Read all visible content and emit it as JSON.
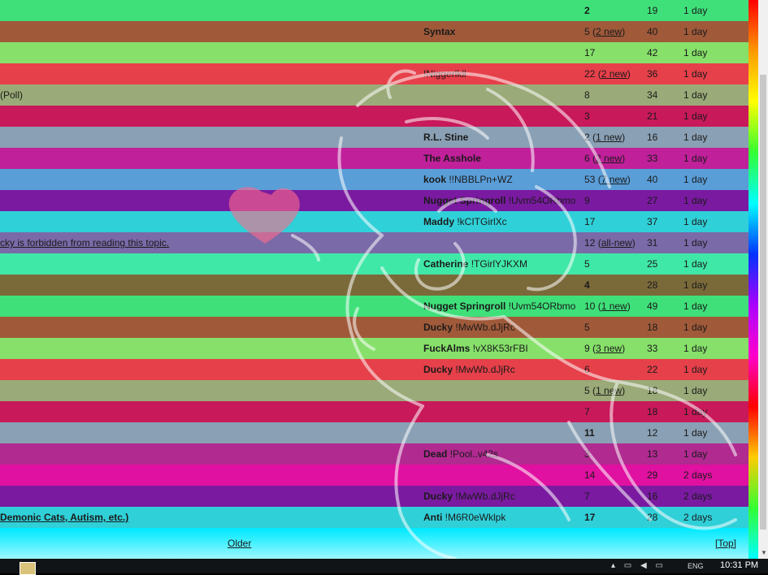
{
  "rows": [
    {
      "topic": "",
      "author": "",
      "replies": "2",
      "new": "",
      "views": "19",
      "time": "1 day",
      "bg": "#3fe07a",
      "bold_replies": true
    },
    {
      "topic": "",
      "author": "Syntax",
      "author_bold": true,
      "replies": "5",
      "new": "2 new",
      "views": "40",
      "time": "1 day",
      "bg": "#a05a3a"
    },
    {
      "topic": "",
      "author": "",
      "replies": "17",
      "new": "",
      "views": "42",
      "time": "1 day",
      "bg": "#86e06a"
    },
    {
      "topic": "",
      "author": "!Niggerlkll",
      "replies": "22",
      "new": "2 new",
      "views": "36",
      "time": "1 day",
      "bg": "#e6404a"
    },
    {
      "topic": "(Poll)",
      "author": "",
      "replies": "8",
      "new": "",
      "views": "34",
      "time": "1 day",
      "bg": "#9aaa78"
    },
    {
      "topic": "",
      "author": "",
      "replies": "3",
      "new": "",
      "views": "21",
      "time": "1 day",
      "bg": "#c8195a"
    },
    {
      "topic": "",
      "author": "R.L. Stine",
      "author_bold": true,
      "replies": "2",
      "new": "1 new",
      "views": "16",
      "time": "1 day",
      "bg": "#8aa0b4"
    },
    {
      "topic": "",
      "author": "The Asshole",
      "author_bold": true,
      "replies": "6",
      "new": "2 new",
      "views": "33",
      "time": "1 day",
      "bg": "#c0209a"
    },
    {
      "topic": "",
      "author": "kook !!NBBLPn+WZ",
      "author_bold_part": "kook",
      "replies": "53",
      "new": "7 new",
      "views": "40",
      "time": "1 day",
      "bg": "#5a9ed8"
    },
    {
      "topic": "",
      "author": "Nugget Springroll !Uvm54ORbmo",
      "author_bold_part": "Nugget Springroll",
      "replies": "9",
      "new": "",
      "views": "27",
      "time": "1 day",
      "bg": "#7a1aa0"
    },
    {
      "topic": "",
      "author": "Maddy !kCITGirlXc",
      "author_bold_part": "Maddy",
      "replies": "17",
      "new": "",
      "views": "37",
      "time": "1 day",
      "bg": "#30d0d8"
    },
    {
      "topic": "cky is forbidden from reading this topic.",
      "topic_link": true,
      "author": "",
      "replies": "12",
      "new": "all-new",
      "views": "31",
      "time": "1 day",
      "bg": "#7a6aa8"
    },
    {
      "topic": "",
      "author": "Catherine !TGirlYJKXM",
      "author_bold_part": "Catherine",
      "replies": "5",
      "new": "",
      "views": "25",
      "time": "1 day",
      "bg": "#40e8a8"
    },
    {
      "topic": "",
      "author": "",
      "replies": "4",
      "new": "",
      "views": "28",
      "time": "1 day",
      "bg": "#7a6a3a",
      "bold_replies": true
    },
    {
      "topic": "",
      "author": "Nugget Springroll !Uvm54ORbmo",
      "author_bold_part": "Nugget Springroll",
      "replies": "10",
      "new": "1 new",
      "views": "49",
      "time": "1 day",
      "bg": "#3fe07a"
    },
    {
      "topic": "",
      "author": "Ducky !MwWb.dJjRc",
      "author_bold_part": "Ducky",
      "replies": "5",
      "new": "",
      "views": "18",
      "time": "1 day",
      "bg": "#a05a3a"
    },
    {
      "topic": "",
      "author": "FuckAlms !vX8K53rFBI",
      "author_bold_part": "FuckAlms",
      "replies": "9",
      "new": "3 new",
      "views": "33",
      "time": "1 day",
      "bg": "#86e06a"
    },
    {
      "topic": "",
      "author": "Ducky !MwWb.dJjRc",
      "author_bold_part": "Ducky",
      "replies": "6",
      "new": "",
      "views": "22",
      "time": "1 day",
      "bg": "#e6404a"
    },
    {
      "topic": "",
      "author": "",
      "replies": "5",
      "new": "1 new",
      "views": "18",
      "time": "1 day",
      "bg": "#9aaa78"
    },
    {
      "topic": "",
      "author": "",
      "replies": "7",
      "new": "",
      "views": "18",
      "time": "1 day",
      "bg": "#c8195a"
    },
    {
      "topic": "",
      "author": "",
      "replies": "11",
      "new": "",
      "views": "12",
      "time": "1 day",
      "bg": "#8aa0b4",
      "bold_replies": true
    },
    {
      "topic": "",
      "author": "Dead !Pool..v42s",
      "author_bold_part": "Dead",
      "replies": "3",
      "new": "",
      "views": "13",
      "time": "1 day",
      "bg": "#b02a90"
    },
    {
      "topic": "",
      "author": "",
      "replies": "14",
      "new": "",
      "views": "29",
      "time": "2 days",
      "bg": "#e010a0"
    },
    {
      "topic": "",
      "author": "Ducky !MwWb.dJjRc",
      "author_bold_part": "Ducky",
      "replies": "7",
      "new": "",
      "views": "16",
      "time": "2 days",
      "bg": "#7a1aa0"
    },
    {
      "topic": "Demonic Cats, Autism, etc.)",
      "topic_link": true,
      "topic_bold": true,
      "author": "Anti !M6R0eWklpk",
      "author_bold_part": "Anti",
      "replies": "17",
      "new": "",
      "views": "28",
      "time": "2 days",
      "bg": "#30d0d8",
      "bold_replies": true
    }
  ],
  "pager": {
    "older": "Older",
    "top": "[Top]"
  },
  "taskbar": {
    "lang": "ENG",
    "clock": "10:31 PM"
  },
  "colors": {
    "overlay_line": "#ffffff",
    "heart": "#ff6a8a"
  }
}
